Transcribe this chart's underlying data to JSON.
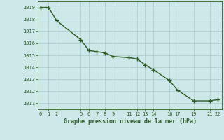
{
  "x": [
    0,
    1,
    2,
    5,
    6,
    7,
    8,
    9,
    11,
    12,
    13,
    14,
    16,
    17,
    19,
    21,
    22
  ],
  "y": [
    1019.0,
    1019.0,
    1017.9,
    1016.3,
    1015.4,
    1015.3,
    1015.2,
    1014.9,
    1014.8,
    1014.7,
    1014.2,
    1013.8,
    1012.9,
    1012.1,
    1011.2,
    1011.2,
    1011.3
  ],
  "x_ticks": [
    0,
    1,
    2,
    5,
    6,
    7,
    8,
    9,
    11,
    12,
    13,
    14,
    16,
    17,
    19,
    21,
    22
  ],
  "y_ticks": [
    1011,
    1012,
    1013,
    1014,
    1015,
    1016,
    1017,
    1018,
    1019
  ],
  "ylim": [
    1010.5,
    1019.5
  ],
  "xlim": [
    -0.3,
    22.5
  ],
  "line_color": "#2d5a27",
  "marker_color": "#2d5a27",
  "bg_color": "#cce8e8",
  "grid_color": "#aacccc",
  "xlabel": "Graphe pression niveau de la mer (hPa)",
  "xlabel_color": "#2d5a27",
  "tick_color": "#2d5a27",
  "spine_color": "#2d5a27",
  "tick_fontsize": 5.0,
  "xlabel_fontsize": 6.0
}
